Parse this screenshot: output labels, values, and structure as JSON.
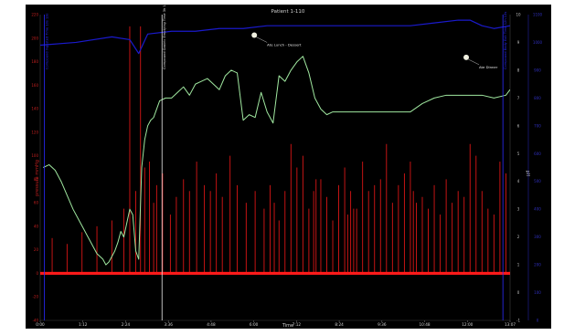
{
  "chart_data": {
    "type": "line",
    "title": "Patient 1-110",
    "xlabel": "Time",
    "ylabel_left": "pressure mmHg",
    "ylabel_right1": "pH",
    "ylabel_right2": "",
    "x_ticks": [
      "0:00",
      "1:12",
      "2:24",
      "3:36",
      "4:48",
      "6:00",
      "7:12",
      "8:24",
      "9:36",
      "10:48",
      "12:00",
      "13:07"
    ],
    "x_range_min": [
      0,
      787
    ],
    "y_left_ticks": [
      -40,
      -20,
      0,
      20,
      40,
      60,
      80,
      100,
      120,
      140,
      160,
      180,
      200,
      220
    ],
    "y_left_range": [
      -40,
      220
    ],
    "y_right1_ticks": [
      -1,
      0,
      1,
      2,
      3,
      4,
      5,
      6,
      7,
      8,
      9,
      10
    ],
    "y_right1_range": [
      -1,
      10
    ],
    "y_right2_ticks": [
      0,
      100,
      200,
      300,
      400,
      500,
      600,
      700,
      800,
      900,
      1000,
      1100
    ],
    "y_right2_range": [
      0,
      1100
    ],
    "series": [
      {
        "color": "#ff1a1a",
        "baseline_x": [
          0,
          787
        ],
        "baseline_y": [
          0,
          0
        ],
        "spikes_x": [
          20,
          45,
          70,
          95,
          120,
          140,
          150,
          160,
          168,
          175,
          183,
          190,
          195,
          205,
          218,
          228,
          240,
          250,
          262,
          275,
          285,
          295,
          305,
          318,
          330,
          345,
          360,
          375,
          385,
          392,
          400,
          410,
          420,
          430,
          440,
          450,
          458,
          462,
          470,
          480,
          490,
          500,
          510,
          515,
          520,
          525,
          530,
          540,
          550,
          560,
          570,
          580,
          590,
          600,
          610,
          620,
          625,
          630,
          640,
          650,
          660,
          670,
          680,
          690,
          700,
          710,
          720,
          730,
          740,
          750,
          760,
          770,
          780
        ],
        "spikes_y": [
          30,
          25,
          35,
          40,
          45,
          55,
          210,
          70,
          210,
          90,
          95,
          60,
          75,
          85,
          50,
          65,
          80,
          70,
          95,
          75,
          70,
          85,
          65,
          100,
          75,
          60,
          70,
          55,
          75,
          60,
          45,
          70,
          110,
          90,
          100,
          55,
          70,
          80,
          80,
          65,
          45,
          75,
          90,
          50,
          70,
          55,
          55,
          95,
          70,
          75,
          80,
          110,
          60,
          75,
          85,
          95,
          70,
          60,
          65,
          55,
          75,
          50,
          80,
          60,
          70,
          65,
          110,
          100,
          70,
          55,
          50,
          95,
          85
        ]
      },
      {
        "color": "#a0e8a0",
        "x": [
          5,
          15,
          25,
          35,
          45,
          55,
          65,
          75,
          85,
          95,
          105,
          110,
          115,
          120,
          125,
          130,
          135,
          140,
          145,
          150,
          155,
          160,
          165,
          170,
          175,
          180,
          185,
          190,
          195,
          200,
          210,
          220,
          230,
          240,
          250,
          260,
          270,
          280,
          290,
          300,
          310,
          320,
          330,
          340,
          350,
          360,
          370,
          380,
          390,
          400,
          410,
          420,
          430,
          440,
          450,
          460,
          470,
          480,
          490,
          500,
          520,
          540,
          560,
          580,
          600,
          620,
          640,
          660,
          680,
          700,
          720,
          740,
          760,
          780,
          787
        ],
        "y": [
          4.5,
          4.6,
          4.4,
          4.0,
          3.5,
          3.0,
          2.6,
          2.2,
          1.8,
          1.4,
          1.2,
          1.0,
          1.1,
          1.3,
          1.5,
          1.8,
          2.2,
          2.0,
          2.5,
          3.0,
          2.8,
          1.5,
          1.2,
          4.5,
          5.5,
          6.0,
          6.2,
          6.3,
          6.6,
          6.9,
          7.0,
          7.0,
          7.2,
          7.4,
          7.1,
          7.5,
          7.6,
          7.7,
          7.5,
          7.3,
          7.8,
          8.0,
          7.9,
          6.2,
          6.4,
          6.3,
          7.2,
          6.5,
          6.1,
          7.8,
          7.6,
          8.0,
          8.3,
          8.5,
          7.9,
          7.0,
          6.6,
          6.4,
          6.5,
          6.5,
          6.5,
          6.5,
          6.5,
          6.5,
          6.5,
          6.5,
          6.8,
          7.0,
          7.1,
          7.1,
          7.1,
          7.1,
          7.0,
          7.1,
          7.3
        ]
      },
      {
        "color": "#1a1acc",
        "x": [
          0,
          60,
          120,
          150,
          165,
          180,
          220,
          260,
          300,
          340,
          380,
          420,
          460,
          500,
          540,
          580,
          620,
          660,
          700,
          720,
          740,
          760,
          787
        ],
        "y": [
          8.9,
          9.0,
          9.2,
          9.1,
          8.6,
          9.3,
          9.4,
          9.4,
          9.5,
          9.5,
          9.6,
          9.6,
          9.6,
          9.6,
          9.6,
          9.6,
          9.6,
          9.7,
          9.8,
          9.8,
          9.6,
          9.5,
          9.6
        ]
      }
    ],
    "annotations": [
      {
        "text": "Compound Ingested Time 10s 13s",
        "x": 7,
        "orientation": "vertical",
        "color": "#2a2aff"
      },
      {
        "text": "Compound Gastric Emptying Time 3h 16s",
        "x": 204,
        "orientation": "vertical",
        "color": "#e8e8e8"
      },
      {
        "text": "Compound Body Exit Time 12h 13s",
        "x": 775,
        "orientation": "vertical",
        "color": "#2a2aff"
      },
      {
        "text": "Ate Lunch - Dessert",
        "x": 380,
        "y": 9.0,
        "color": "#e8e8e8"
      },
      {
        "text": "Ate Dinner",
        "x": 735,
        "y": 8.2,
        "color": "#e8e8e8"
      }
    ],
    "grid": false,
    "legend": "none",
    "background": "#000000"
  }
}
